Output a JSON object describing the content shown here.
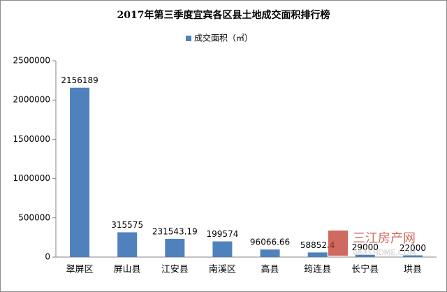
{
  "chart_data": {
    "type": "bar",
    "title": "2017年第三季度宜宾各区县土地成交面积排行榜",
    "categories": [
      "翠屏区",
      "屏山县",
      "江安县",
      "南溪区",
      "高县",
      "筠连县",
      "长宁县",
      "珙县"
    ],
    "series": [
      {
        "name": "成交面积（㎡）",
        "color": "#4f81bd",
        "values": [
          2156189,
          315575,
          231543.19,
          199574,
          96066.66,
          58852.4,
          29000,
          22000
        ]
      }
    ],
    "ylim": [
      0,
      2500000
    ],
    "yticks": [
      0,
      500000,
      1000000,
      1500000,
      2000000,
      2500000
    ],
    "legend": "top",
    "grid": false,
    "watermark": {
      "name": "三江房产网",
      "url": "0831HOME.COM"
    }
  }
}
